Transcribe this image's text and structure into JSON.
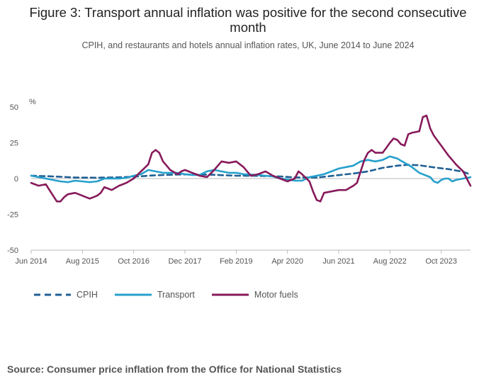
{
  "title": "Figure 3: Transport annual inflation was positive for the second consecutive month",
  "subtitle": "CPIH, and restaurants and hotels annual inflation rates, UK, June 2014 to June 2024",
  "source": "Source: Consumer price inflation from the Office for National Statistics",
  "colors": {
    "cpih": "#206095",
    "transport": "#27a0cc",
    "motor_fuels": "#871a5b",
    "axis": "#bbbbbb"
  },
  "chart_data": {
    "type": "line",
    "title": "Figure 3: Transport annual inflation was positive for the second consecutive month",
    "ylabel": "%",
    "xlabel": "",
    "ylim": [
      -50,
      50
    ],
    "yticks": [
      50,
      25,
      0,
      -25,
      -50
    ],
    "x_start": "Jun 2014",
    "x_end": "Jun 2024",
    "months": 121,
    "xtick_labels": [
      "Jun 2014",
      "Aug 2015",
      "Oct 2016",
      "Dec 2017",
      "Feb 2019",
      "Apr 2020",
      "Jun 2021",
      "Aug 2022",
      "Oct 2023"
    ],
    "xtick_month_index": [
      0,
      14,
      28,
      42,
      56,
      70,
      84,
      98,
      112
    ],
    "series": [
      {
        "name": "CPIH",
        "style": "dashed",
        "keyframes": [
          [
            0,
            2
          ],
          [
            6,
            1.5
          ],
          [
            12,
            0.7
          ],
          [
            18,
            0.6
          ],
          [
            24,
            0.9
          ],
          [
            28,
            1.3
          ],
          [
            34,
            2.3
          ],
          [
            40,
            2.8
          ],
          [
            44,
            2.9
          ],
          [
            50,
            2.6
          ],
          [
            56,
            2.0
          ],
          [
            62,
            1.9
          ],
          [
            68,
            1.5
          ],
          [
            72,
            0.8
          ],
          [
            78,
            0.7
          ],
          [
            84,
            2.4
          ],
          [
            88,
            3.5
          ],
          [
            92,
            5.0
          ],
          [
            96,
            7.5
          ],
          [
            100,
            9.0
          ],
          [
            103,
            9.6
          ],
          [
            106,
            9.3
          ],
          [
            110,
            7.8
          ],
          [
            114,
            6.6
          ],
          [
            118,
            4.7
          ],
          [
            120,
            2.8
          ]
        ]
      },
      {
        "name": "Transport",
        "style": "solid",
        "keyframes": [
          [
            0,
            2
          ],
          [
            4,
            0
          ],
          [
            6,
            -1
          ],
          [
            8,
            -2
          ],
          [
            10,
            -2.5
          ],
          [
            12,
            -1.5
          ],
          [
            14,
            -2
          ],
          [
            16,
            -2.5
          ],
          [
            18,
            -2
          ],
          [
            20,
            0
          ],
          [
            22,
            0
          ],
          [
            24,
            0
          ],
          [
            26,
            0.5
          ],
          [
            28,
            2
          ],
          [
            30,
            3
          ],
          [
            32,
            6
          ],
          [
            34,
            5
          ],
          [
            36,
            4
          ],
          [
            40,
            4
          ],
          [
            42,
            3
          ],
          [
            44,
            2.5
          ],
          [
            46,
            2.5
          ],
          [
            48,
            5
          ],
          [
            50,
            6
          ],
          [
            52,
            5
          ],
          [
            54,
            4
          ],
          [
            56,
            4
          ],
          [
            58,
            3
          ],
          [
            62,
            2.5
          ],
          [
            64,
            2
          ],
          [
            66,
            1.5
          ],
          [
            68,
            0
          ],
          [
            70,
            -0.5
          ],
          [
            72,
            -1.5
          ],
          [
            74,
            -1.5
          ],
          [
            76,
            1
          ],
          [
            80,
            3
          ],
          [
            82,
            5
          ],
          [
            84,
            7
          ],
          [
            86,
            8
          ],
          [
            88,
            9
          ],
          [
            90,
            12
          ],
          [
            92,
            13
          ],
          [
            94,
            12
          ],
          [
            96,
            13
          ],
          [
            98,
            15.5
          ],
          [
            100,
            14
          ],
          [
            102,
            11
          ],
          [
            104,
            8
          ],
          [
            106,
            4
          ],
          [
            108,
            2
          ],
          [
            109,
            1
          ],
          [
            110,
            -2
          ],
          [
            111,
            -3
          ],
          [
            112,
            -1
          ],
          [
            113,
            0
          ],
          [
            114,
            0
          ],
          [
            115,
            -2
          ],
          [
            116,
            -1
          ],
          [
            118,
            0
          ],
          [
            120,
            1
          ]
        ]
      },
      {
        "name": "Motor fuels",
        "style": "solid",
        "keyframes": [
          [
            0,
            -3
          ],
          [
            2,
            -5
          ],
          [
            4,
            -4
          ],
          [
            6,
            -12
          ],
          [
            7,
            -16
          ],
          [
            8,
            -16
          ],
          [
            9,
            -13
          ],
          [
            10,
            -11
          ],
          [
            12,
            -10
          ],
          [
            14,
            -12
          ],
          [
            16,
            -14
          ],
          [
            18,
            -12
          ],
          [
            19,
            -10
          ],
          [
            20,
            -6
          ],
          [
            22,
            -8
          ],
          [
            24,
            -5
          ],
          [
            26,
            -3
          ],
          [
            28,
            0
          ],
          [
            30,
            5
          ],
          [
            32,
            10
          ],
          [
            33,
            18
          ],
          [
            34,
            20
          ],
          [
            35,
            18
          ],
          [
            36,
            12
          ],
          [
            38,
            6
          ],
          [
            40,
            3
          ],
          [
            41,
            5
          ],
          [
            42,
            6
          ],
          [
            44,
            4
          ],
          [
            46,
            2
          ],
          [
            48,
            1
          ],
          [
            50,
            6
          ],
          [
            52,
            12
          ],
          [
            54,
            11
          ],
          [
            56,
            12
          ],
          [
            58,
            8
          ],
          [
            60,
            2
          ],
          [
            62,
            3
          ],
          [
            64,
            5
          ],
          [
            66,
            2
          ],
          [
            68,
            0
          ],
          [
            70,
            -2
          ],
          [
            72,
            0
          ],
          [
            73,
            5
          ],
          [
            74,
            3
          ],
          [
            76,
            -2
          ],
          [
            77,
            -9
          ],
          [
            78,
            -15
          ],
          [
            79,
            -16
          ],
          [
            80,
            -10
          ],
          [
            82,
            -9
          ],
          [
            84,
            -8
          ],
          [
            86,
            -8
          ],
          [
            88,
            -5
          ],
          [
            89,
            -3
          ],
          [
            90,
            5
          ],
          [
            91,
            13
          ],
          [
            92,
            18
          ],
          [
            93,
            20
          ],
          [
            94,
            18
          ],
          [
            96,
            18
          ],
          [
            98,
            25
          ],
          [
            99,
            28
          ],
          [
            100,
            27
          ],
          [
            101,
            24
          ],
          [
            102,
            23
          ],
          [
            103,
            31
          ],
          [
            104,
            32
          ],
          [
            106,
            33
          ],
          [
            107,
            43
          ],
          [
            108,
            44
          ],
          [
            109,
            35
          ],
          [
            110,
            30
          ],
          [
            112,
            23
          ],
          [
            114,
            16
          ],
          [
            116,
            10
          ],
          [
            118,
            5
          ],
          [
            119,
            0
          ],
          [
            120,
            -5
          ]
        ]
      }
    ],
    "series_scale_note": "motor_fuels and transport keyframes mapped across full range"
  },
  "legend": [
    {
      "key": "cpih",
      "label": "CPIH"
    },
    {
      "key": "transport",
      "label": "Transport"
    },
    {
      "key": "motor_fuels",
      "label": "Motor fuels"
    }
  ]
}
